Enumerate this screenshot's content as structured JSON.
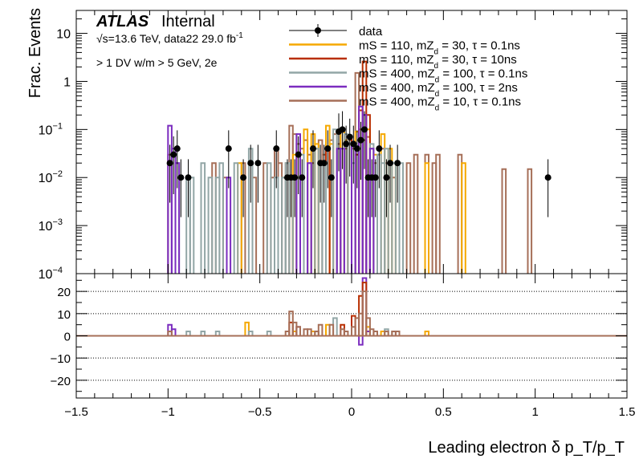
{
  "chart_data": {
    "type": "histogram",
    "experiment": "ATLAS",
    "status": "Internal",
    "energy_label": "√s=13.6 TeV, data22 29.0 fb",
    "lumi_superscript": "-1",
    "selection_label": "> 1 DV w/m > 5 GeV, 2e",
    "ylabel": "Frac. Events",
    "xlabel": "Leading electron δ p_T/p_T",
    "yscale": "log",
    "ylim": [
      0.0001,
      30
    ],
    "xlim": [
      -1.5,
      1.5
    ],
    "ratio_ylim": [
      -28,
      28
    ],
    "top_ytick_labels": [
      {
        "v": 10,
        "text": "10"
      },
      {
        "v": 1,
        "text": "1"
      },
      {
        "v": 0.1,
        "text": "10",
        "sup": "−1"
      },
      {
        "v": 0.01,
        "text": "10",
        "sup": "−2"
      },
      {
        "v": 0.001,
        "text": "10",
        "sup": "−3"
      },
      {
        "v": 0.0001,
        "text": "10",
        "sup": "−4"
      }
    ],
    "ratio_ytick_labels": [
      "20",
      "10",
      "0",
      "−10",
      "−20"
    ],
    "ratio_yticks": [
      20,
      10,
      0,
      -10,
      -20
    ],
    "x_ticks": [
      -1.5,
      -1,
      -0.5,
      0,
      0.5,
      1,
      1.5
    ],
    "x_tick_labels": [
      "−1.5",
      "−1",
      "−0.5",
      "0",
      "0.5",
      "1",
      "1.5"
    ],
    "legend": {
      "placement": "top-center",
      "entries": [
        {
          "label": "data",
          "color": "#000000",
          "marker": "point"
        },
        {
          "label": "mS = 110, mZ",
          "sub": "d",
          "rest": " = 30, τ = 0.1ns",
          "color": "#f5a800",
          "marker": "line"
        },
        {
          "label": "mS = 110, mZ",
          "sub": "d",
          "rest": " = 30, τ = 10ns",
          "color": "#b82e00",
          "marker": "line"
        },
        {
          "label": "mS = 400, mZ",
          "sub": "d",
          "rest": " = 100, τ = 0.1ns",
          "color": "#92a6a6",
          "marker": "line"
        },
        {
          "label": "mS = 400, mZ",
          "sub": "d",
          "rest": " = 100, τ = 2ns",
          "color": "#7b2cbf",
          "marker": "line"
        },
        {
          "label": "mS = 400, mZ",
          "sub": "d",
          "rest": " = 10, τ = 0.1ns",
          "color": "#a66f58",
          "marker": "line"
        }
      ]
    },
    "bin_width": 0.02,
    "data_points": [
      {
        "x": -0.99,
        "y": 0.02
      },
      {
        "x": -0.97,
        "y": 0.03
      },
      {
        "x": -0.95,
        "y": 0.04
      },
      {
        "x": -0.93,
        "y": 0.01
      },
      {
        "x": -0.89,
        "y": 0.01
      },
      {
        "x": -0.67,
        "y": 0.04
      },
      {
        "x": -0.59,
        "y": 0.01
      },
      {
        "x": -0.55,
        "y": 0.02
      },
      {
        "x": -0.51,
        "y": 0.02
      },
      {
        "x": -0.41,
        "y": 0.04
      },
      {
        "x": -0.35,
        "y": 0.01
      },
      {
        "x": -0.33,
        "y": 0.01
      },
      {
        "x": -0.31,
        "y": 0.01
      },
      {
        "x": -0.29,
        "y": 0.03
      },
      {
        "x": -0.27,
        "y": 0.01
      },
      {
        "x": -0.21,
        "y": 0.04
      },
      {
        "x": -0.17,
        "y": 0.02
      },
      {
        "x": -0.15,
        "y": 0.02
      },
      {
        "x": -0.13,
        "y": 0.04
      },
      {
        "x": -0.11,
        "y": 0.01
      },
      {
        "x": -0.07,
        "y": 0.09
      },
      {
        "x": -0.05,
        "y": 0.1
      },
      {
        "x": -0.03,
        "y": 0.05
      },
      {
        "x": -0.01,
        "y": 0.07
      },
      {
        "x": 0.01,
        "y": 0.05
      },
      {
        "x": 0.03,
        "y": 0.04
      },
      {
        "x": 0.05,
        "y": 0.06
      },
      {
        "x": 0.07,
        "y": 0.1
      },
      {
        "x": 0.09,
        "y": 0.01
      },
      {
        "x": 0.11,
        "y": 0.01
      },
      {
        "x": 0.13,
        "y": 0.01
      },
      {
        "x": 0.15,
        "y": 0.04
      },
      {
        "x": 0.19,
        "y": 0.01
      },
      {
        "x": 0.21,
        "y": 0.02
      },
      {
        "x": 0.25,
        "y": 0.02
      },
      {
        "x": 1.07,
        "y": 0.01
      }
    ],
    "series": [
      {
        "color": "#a66f58",
        "bins": [
          [
            -0.99,
            0.03
          ],
          [
            -0.75,
            0.02
          ],
          [
            -0.69,
            0.01
          ],
          [
            -0.59,
            0.02
          ],
          [
            -0.53,
            0.01
          ],
          [
            -0.47,
            0.02
          ],
          [
            -0.43,
            0.01
          ],
          [
            -0.41,
            0.04
          ],
          [
            -0.39,
            0.02
          ],
          [
            -0.37,
            0.01
          ],
          [
            -0.35,
            0.02
          ],
          [
            -0.33,
            0.12
          ],
          [
            -0.31,
            0.08
          ],
          [
            -0.29,
            0.05
          ],
          [
            -0.27,
            0.04
          ],
          [
            -0.25,
            0.06
          ],
          [
            -0.23,
            0.03
          ],
          [
            -0.21,
            0.02
          ],
          [
            -0.19,
            0.04
          ],
          [
            -0.17,
            0.06
          ],
          [
            -0.15,
            0.03
          ],
          [
            -0.13,
            0.04
          ],
          [
            -0.11,
            0.06
          ],
          [
            -0.09,
            0.08
          ],
          [
            -0.07,
            0.05
          ],
          [
            -0.05,
            0.1
          ],
          [
            -0.03,
            0.04
          ],
          [
            -0.01,
            0.06
          ],
          [
            0.01,
            0.04
          ],
          [
            0.03,
            1.5
          ],
          [
            0.05,
            0.1
          ],
          [
            0.07,
            0.06
          ],
          [
            0.09,
            0.07
          ],
          [
            0.11,
            0.04
          ],
          [
            0.13,
            0.02
          ],
          [
            0.17,
            0.04
          ],
          [
            0.19,
            0.02
          ],
          [
            0.23,
            0.01
          ],
          [
            0.31,
            0.02
          ],
          [
            0.35,
            0.03
          ],
          [
            0.41,
            0.03
          ],
          [
            0.45,
            0.02
          ],
          [
            0.47,
            0.03
          ],
          [
            0.59,
            0.03
          ],
          [
            0.83,
            0.015
          ],
          [
            0.97,
            0.015
          ]
        ]
      },
      {
        "color": "#f5a800",
        "bins": [
          [
            -0.61,
            0.02
          ],
          [
            -0.31,
            0.03
          ],
          [
            -0.25,
            0.1
          ],
          [
            -0.21,
            0.08
          ],
          [
            -0.19,
            0.05
          ],
          [
            -0.13,
            0.12
          ],
          [
            -0.11,
            0.05
          ],
          [
            -0.05,
            0.1
          ],
          [
            -0.03,
            0.06
          ],
          [
            0.03,
            0.09
          ],
          [
            0.05,
            0.06
          ],
          [
            0.09,
            0.1
          ],
          [
            0.13,
            0.03
          ],
          [
            0.17,
            0.08
          ],
          [
            0.21,
            0.04
          ],
          [
            0.25,
            0.02
          ],
          [
            0.41,
            0.02
          ],
          [
            0.61,
            0.02
          ]
        ]
      },
      {
        "color": "#b82e00",
        "bins": [
          [
            -0.13,
            0.04
          ],
          [
            -0.01,
            0.07
          ],
          [
            0.03,
            0.03
          ],
          [
            0.05,
            0.25
          ],
          [
            0.07,
            2.6
          ],
          [
            0.09,
            0.2
          ]
        ]
      },
      {
        "color": "#92a6a6",
        "bins": [
          [
            -0.95,
            0.02
          ],
          [
            -0.89,
            0.01
          ],
          [
            -0.87,
            0.01
          ],
          [
            -0.81,
            0.02
          ],
          [
            -0.77,
            0.01
          ],
          [
            -0.73,
            0.01
          ],
          [
            -0.71,
            0.02
          ],
          [
            -0.63,
            0.02
          ],
          [
            -0.55,
            0.04
          ],
          [
            -0.45,
            0.02
          ],
          [
            -0.41,
            0.01
          ],
          [
            -0.37,
            0.01
          ],
          [
            -0.35,
            0.02
          ],
          [
            -0.31,
            0.01
          ],
          [
            -0.27,
            0.03
          ],
          [
            -0.23,
            0.02
          ],
          [
            -0.19,
            0.04
          ],
          [
            -0.15,
            0.02
          ],
          [
            -0.09,
            0.1
          ],
          [
            -0.03,
            0.08
          ],
          [
            0.01,
            0.02
          ],
          [
            0.05,
            0.06
          ],
          [
            0.11,
            0.05
          ],
          [
            0.15,
            0.03
          ],
          [
            0.17,
            0.02
          ],
          [
            0.19,
            0.04
          ],
          [
            0.23,
            0.02
          ],
          [
            0.27,
            0.02
          ]
        ]
      },
      {
        "color": "#7b2cbf",
        "bins": [
          [
            -0.99,
            0.12
          ],
          [
            -0.97,
            0.04
          ],
          [
            -0.95,
            0.02
          ],
          [
            -0.67,
            0.01
          ],
          [
            -0.29,
            0.08
          ],
          [
            -0.23,
            0.02
          ],
          [
            -0.07,
            0.04
          ],
          [
            -0.05,
            0.04
          ],
          [
            0.01,
            0.05
          ],
          [
            0.05,
            0.3
          ],
          [
            0.07,
            0.2
          ],
          [
            0.09,
            0.01
          ],
          [
            0.11,
            0.04
          ]
        ]
      }
    ],
    "ratio_series": [
      {
        "color": "#7b2cbf",
        "bins": [
          [
            -0.99,
            5
          ],
          [
            -0.97,
            3
          ],
          [
            -0.29,
            4
          ],
          [
            0.05,
            -4
          ],
          [
            0.07,
            26
          ],
          [
            0.09,
            2
          ]
        ]
      },
      {
        "color": "#f5a800",
        "bins": [
          [
            -0.57,
            6
          ],
          [
            -0.31,
            2
          ],
          [
            -0.21,
            2
          ],
          [
            -0.13,
            5
          ],
          [
            0.09,
            4
          ],
          [
            0.17,
            2
          ],
          [
            0.41,
            2
          ]
        ]
      },
      {
        "color": "#92a6a6",
        "bins": [
          [
            -0.89,
            2
          ],
          [
            -0.81,
            2
          ],
          [
            -0.73,
            2
          ],
          [
            -0.55,
            2
          ],
          [
            -0.45,
            2
          ],
          [
            -0.19,
            2
          ],
          [
            -0.09,
            8
          ],
          [
            0.19,
            3
          ],
          [
            0.23,
            2
          ]
        ]
      },
      {
        "color": "#b82e00",
        "bins": [
          [
            -0.33,
            6
          ],
          [
            -0.29,
            4
          ],
          [
            -0.05,
            5
          ],
          [
            0.01,
            9
          ],
          [
            0.05,
            18
          ],
          [
            0.07,
            24
          ]
        ]
      },
      {
        "color": "#a66f58",
        "bins": [
          [
            -0.99,
            2
          ],
          [
            -0.35,
            2
          ],
          [
            -0.33,
            11
          ],
          [
            -0.31,
            6
          ],
          [
            -0.29,
            4
          ],
          [
            -0.25,
            3
          ],
          [
            -0.23,
            3
          ],
          [
            -0.19,
            2
          ],
          [
            -0.17,
            5
          ],
          [
            -0.11,
            5
          ],
          [
            -0.05,
            3
          ],
          [
            -0.03,
            2
          ],
          [
            0.01,
            4
          ],
          [
            0.03,
            8
          ],
          [
            0.05,
            10
          ],
          [
            0.07,
            20
          ],
          [
            0.09,
            8
          ],
          [
            0.11,
            3
          ],
          [
            0.13,
            2
          ],
          [
            0.19,
            2
          ],
          [
            0.23,
            2
          ],
          [
            0.25,
            2
          ]
        ]
      }
    ]
  }
}
